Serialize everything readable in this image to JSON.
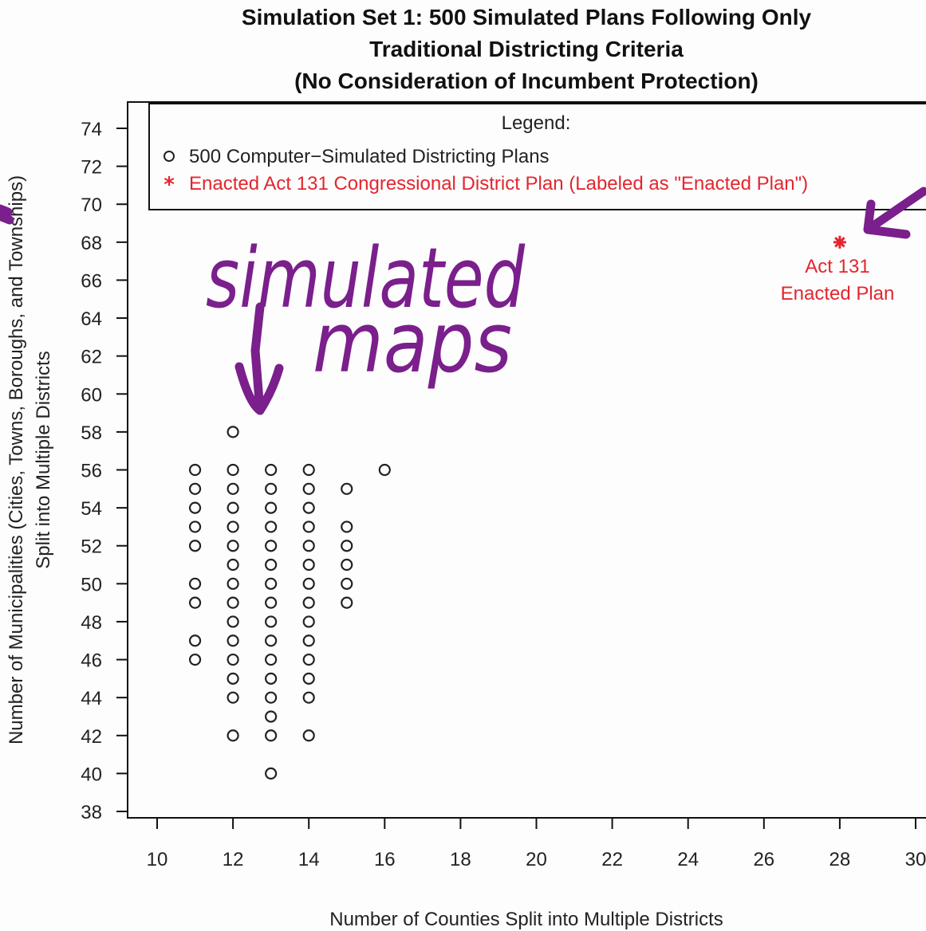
{
  "title_lines": [
    "Simulation Set 1: 500 Simulated Plans Following Only",
    "Traditional Districting Criteria",
    "(No Consideration of Incumbent Protection)"
  ],
  "colors": {
    "simulated": "#222222",
    "enacted": "#e3262f",
    "annotation": "#7a1f8c"
  },
  "chart_data": {
    "type": "scatter",
    "title": "Simulation Set 1: 500 Simulated Plans Following Only Traditional Districting Criteria (No Consideration of Incumbent Protection)",
    "xlabel": "Number of Counties Split into Multiple Districts",
    "ylabel_lines": [
      "Number of Municipalities (Cities, Towns, Boroughs, and Townships)",
      "Split into Multiple Districts"
    ],
    "xlim": [
      10,
      30
    ],
    "ylim": [
      38,
      74
    ],
    "xticks": [
      "10",
      "12",
      "14",
      "16",
      "18",
      "20",
      "22",
      "24",
      "26",
      "28",
      "30"
    ],
    "yticks": [
      "38",
      "40",
      "42",
      "44",
      "46",
      "48",
      "50",
      "52",
      "54",
      "56",
      "58",
      "60",
      "62",
      "64",
      "66",
      "68",
      "70",
      "72",
      "74"
    ],
    "legend": {
      "title": "Legend:",
      "placement": "top",
      "entries": [
        "500 Computer−Simulated Districting Plans",
        "Enacted Act 131 Congressional District Plan (Labeled as \"Enacted Plan\")"
      ]
    },
    "series": [
      {
        "marker": "open-circle",
        "points": [
          [
            11,
            56
          ],
          [
            11,
            55
          ],
          [
            11,
            54
          ],
          [
            11,
            53
          ],
          [
            11,
            52
          ],
          [
            11,
            50
          ],
          [
            11,
            49
          ],
          [
            11,
            47
          ],
          [
            11,
            46
          ],
          [
            12,
            58
          ],
          [
            12,
            56
          ],
          [
            12,
            55
          ],
          [
            12,
            54
          ],
          [
            12,
            53
          ],
          [
            12,
            52
          ],
          [
            12,
            51
          ],
          [
            12,
            50
          ],
          [
            12,
            49
          ],
          [
            12,
            48
          ],
          [
            12,
            47
          ],
          [
            12,
            46
          ],
          [
            12,
            45
          ],
          [
            12,
            44
          ],
          [
            12,
            42
          ],
          [
            13,
            56
          ],
          [
            13,
            55
          ],
          [
            13,
            54
          ],
          [
            13,
            53
          ],
          [
            13,
            52
          ],
          [
            13,
            51
          ],
          [
            13,
            50
          ],
          [
            13,
            49
          ],
          [
            13,
            48
          ],
          [
            13,
            47
          ],
          [
            13,
            46
          ],
          [
            13,
            45
          ],
          [
            13,
            44
          ],
          [
            13,
            43
          ],
          [
            13,
            42
          ],
          [
            13,
            40
          ],
          [
            14,
            56
          ],
          [
            14,
            55
          ],
          [
            14,
            54
          ],
          [
            14,
            53
          ],
          [
            14,
            52
          ],
          [
            14,
            51
          ],
          [
            14,
            50
          ],
          [
            14,
            49
          ],
          [
            14,
            48
          ],
          [
            14,
            47
          ],
          [
            14,
            46
          ],
          [
            14,
            45
          ],
          [
            14,
            44
          ],
          [
            14,
            42
          ],
          [
            15,
            55
          ],
          [
            15,
            53
          ],
          [
            15,
            52
          ],
          [
            15,
            51
          ],
          [
            15,
            50
          ],
          [
            15,
            49
          ],
          [
            16,
            56
          ]
        ]
      },
      {
        "marker": "asterisk",
        "points": [
          [
            28,
            68
          ]
        ],
        "label_lines": [
          "Act 131",
          "Enacted Plan"
        ]
      }
    ]
  },
  "annotations": {
    "handwritten_lines": [
      "simulated",
      "maps"
    ]
  }
}
